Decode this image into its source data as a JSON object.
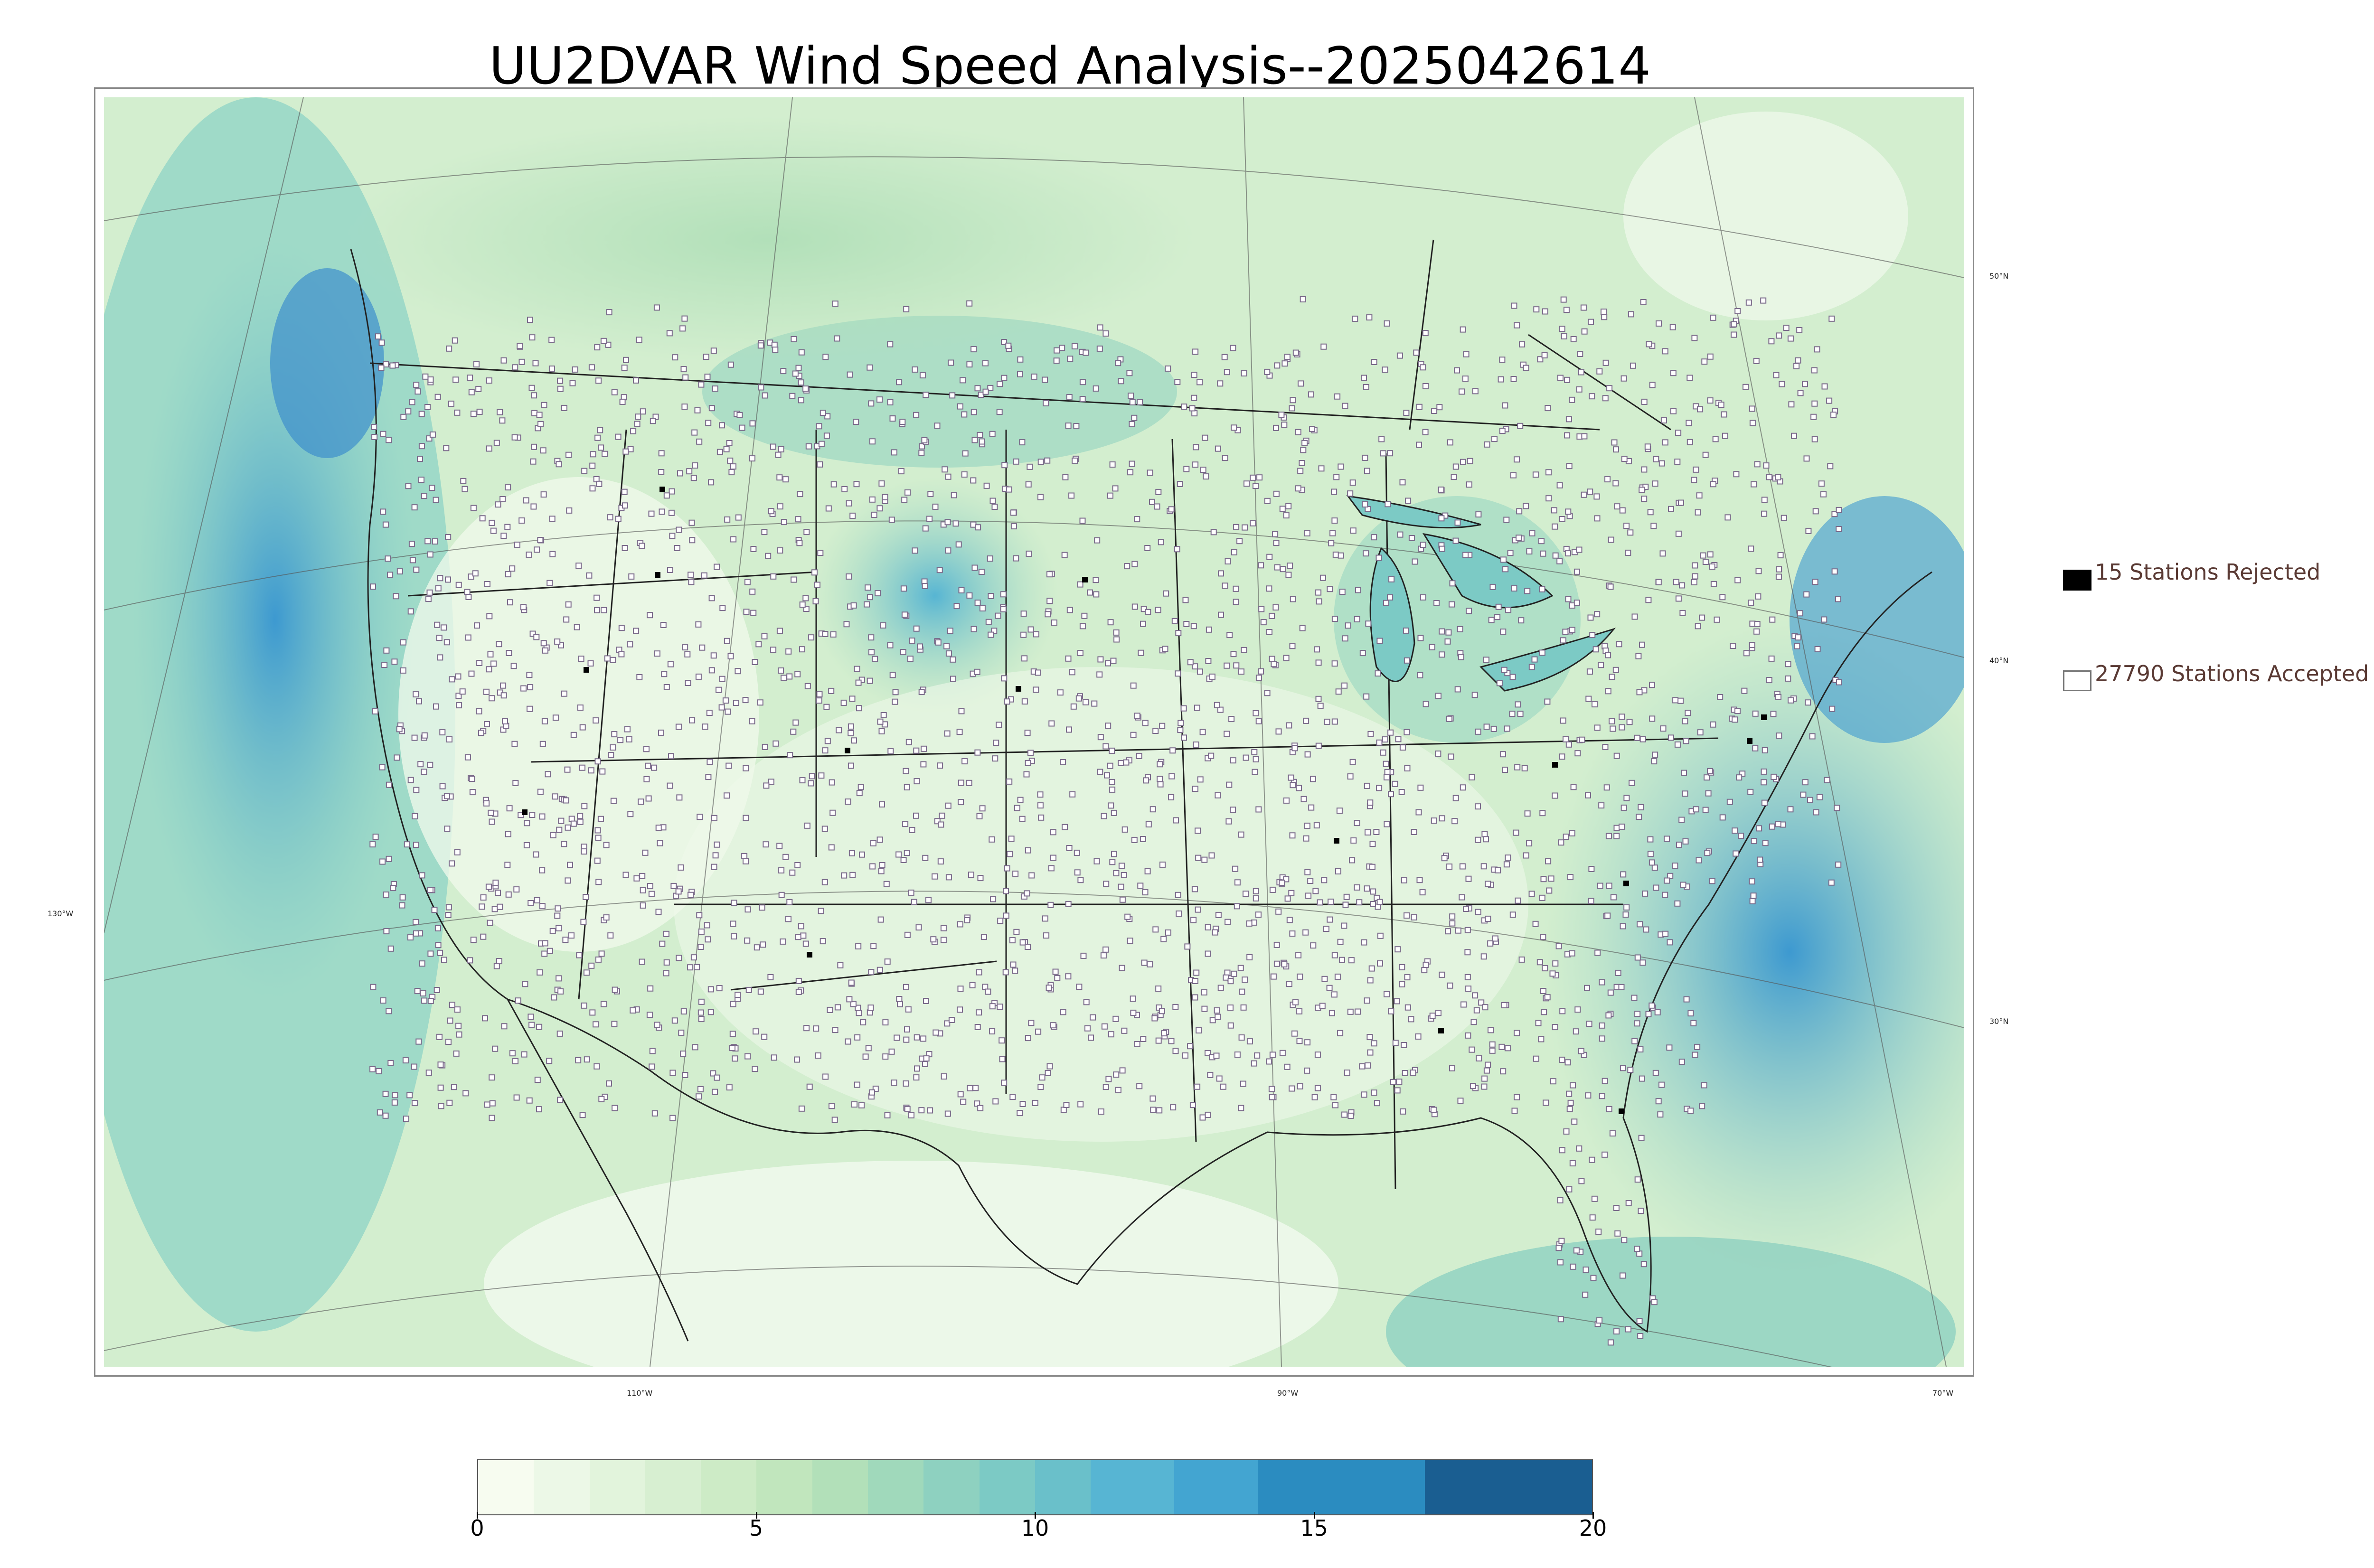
{
  "title": "UU2DVAR Wind Speed Analysis--2025042614",
  "map": {
    "longitude_labels": [
      "130°W",
      "110°W",
      "90°W",
      "70°W"
    ],
    "latitude_labels": [
      "50°N",
      "40°N",
      "30°N"
    ],
    "colors": {
      "land_low": "#eef8e9",
      "land_mid": "#c9eac0",
      "ocean_mid": "#9fdac8",
      "ocean_high": "#4aa7d6",
      "boundary_line": "#333333",
      "station_marker": "#7a6a8a"
    }
  },
  "legend": {
    "rejected": {
      "label": "15 Stations Rejected",
      "count": 15,
      "color": "#000000"
    },
    "accepted": {
      "label": "27790 Stations Accepted",
      "count": 27790,
      "color": "#ffffff"
    }
  },
  "colorbar": {
    "min": 0,
    "max": 20,
    "tick_labels": [
      "0",
      "5",
      "10",
      "15",
      "20"
    ],
    "tick_values": [
      0,
      5,
      10,
      15,
      20
    ],
    "segments": [
      {
        "from": 0,
        "to": 1,
        "color": "#f7fcf0"
      },
      {
        "from": 1,
        "to": 2,
        "color": "#ecf8e7"
      },
      {
        "from": 2,
        "to": 3,
        "color": "#e2f4dc"
      },
      {
        "from": 3,
        "to": 4,
        "color": "#d7efd1"
      },
      {
        "from": 4,
        "to": 5,
        "color": "#cdebc6"
      },
      {
        "from": 5,
        "to": 6,
        "color": "#c1e6bd"
      },
      {
        "from": 6,
        "to": 7,
        "color": "#b2e0b9"
      },
      {
        "from": 7,
        "to": 8,
        "color": "#a0d9bb"
      },
      {
        "from": 8,
        "to": 9,
        "color": "#8ed1c0"
      },
      {
        "from": 9,
        "to": 10,
        "color": "#7ccac5"
      },
      {
        "from": 10,
        "to": 11,
        "color": "#6ac0ca"
      },
      {
        "from": 11,
        "to": 12.5,
        "color": "#57b5d3"
      },
      {
        "from": 12.5,
        "to": 14,
        "color": "#43a5d1"
      },
      {
        "from": 14,
        "to": 17,
        "color": "#2b8cc0"
      },
      {
        "from": 17,
        "to": 20,
        "color": "#1a5e91"
      }
    ]
  }
}
